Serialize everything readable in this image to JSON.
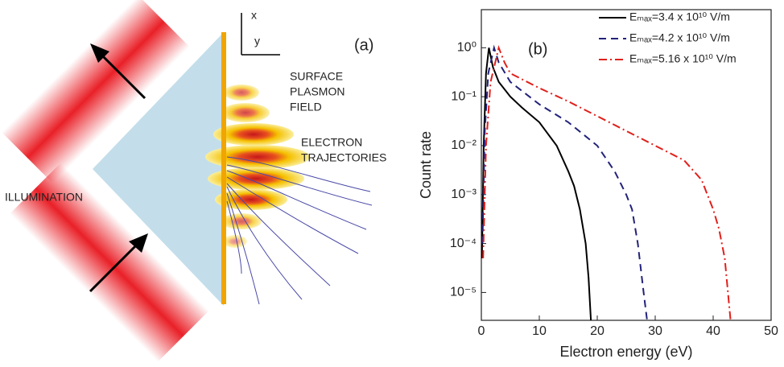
{
  "diagram": {
    "panel_label": "(a)",
    "axis_x": "x",
    "axis_y": "y",
    "labels": [
      "SURFACE",
      "PLASMON",
      "FIELD",
      "ELECTRON",
      "TRAJECTORIES",
      "ILLUMINATION"
    ]
  },
  "chart_data": {
    "type": "line",
    "panel_label": "(b)",
    "x_label": "Electron energy (eV)",
    "y_label": "Count rate",
    "log_y": true,
    "xlim": [
      0,
      50
    ],
    "ylim": [
      2.7e-06,
      6
    ],
    "xticks": [
      0,
      10,
      20,
      30,
      40,
      50
    ],
    "yticks": [
      {
        "value": 1e-05,
        "label": "10⁻⁵"
      },
      {
        "value": 0.0001,
        "label": "10⁻⁴"
      },
      {
        "value": 0.001,
        "label": "10⁻³"
      },
      {
        "value": 0.01,
        "label": "10⁻²"
      },
      {
        "value": 0.1,
        "label": "10⁻¹"
      },
      {
        "value": 1,
        "label": "10⁰"
      }
    ],
    "legend": "upper right",
    "series": [
      {
        "name": "Eₘₐₓ=3.4 x 10¹⁰ V/m",
        "color": "#000000",
        "dash": "none",
        "x": [
          0.1,
          0.4,
          0.8,
          1.3,
          2,
          3,
          5,
          7,
          10,
          13,
          15,
          16,
          17,
          18,
          18.5,
          18.9
        ],
        "values": [
          5e-05,
          0.01,
          0.3,
          1,
          0.4,
          0.2,
          0.1,
          0.06,
          0.03,
          0.01,
          0.003,
          0.0015,
          0.0005,
          0.0001,
          2e-05,
          2.7e-06
        ]
      },
      {
        "name": "Eₘₐₓ=4.2 x 10¹⁰ V/m",
        "color": "#22227a",
        "dash": "9 6",
        "x": [
          0.2,
          0.6,
          1.2,
          2.2,
          3,
          5,
          10,
          15,
          20,
          23,
          25,
          26,
          27,
          28,
          28.6
        ],
        "values": [
          0.0001,
          0.02,
          0.3,
          1,
          0.5,
          0.2,
          0.07,
          0.03,
          0.01,
          0.003,
          0.001,
          0.0005,
          0.0001,
          1e-05,
          2.7e-06
        ]
      },
      {
        "name": "Eₘₐₓ=5.16 x 10¹⁰ V/m",
        "color": "#e0201b",
        "dash": "10 4 2 4",
        "x": [
          0.3,
          0.8,
          1.6,
          3,
          4,
          5,
          10,
          15,
          20,
          25,
          30,
          35,
          38,
          40,
          41,
          42,
          43
        ],
        "values": [
          5e-05,
          0.01,
          0.2,
          1,
          0.5,
          0.3,
          0.15,
          0.08,
          0.04,
          0.02,
          0.01,
          0.005,
          0.002,
          0.0005,
          0.0002,
          5e-05,
          2.7e-06
        ]
      }
    ]
  }
}
